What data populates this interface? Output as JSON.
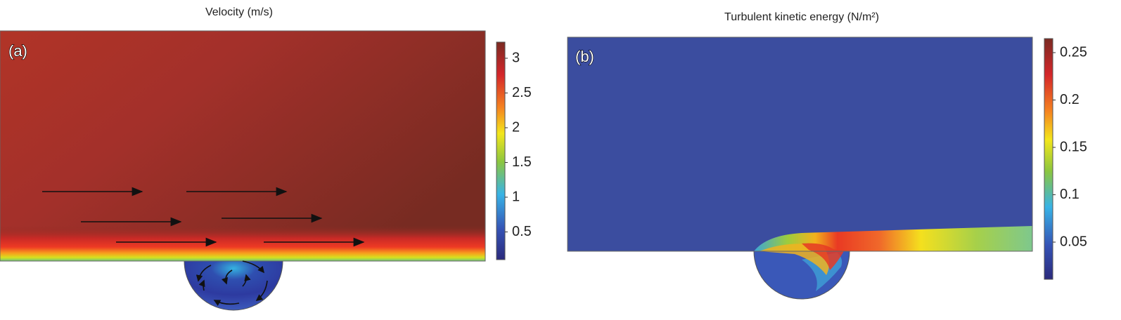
{
  "panels": [
    {
      "title": "Velocity (m/s)",
      "label": "(a)",
      "colorbar_ticks": [
        "3",
        "2.5",
        "2",
        "1.5",
        "1",
        "0.5"
      ]
    },
    {
      "title": "Turbulent kinetic energy (N/m²)",
      "label": "(b)",
      "colorbar_ticks": [
        "0.25",
        "0.2",
        "0.15",
        "0.1",
        "0.05"
      ]
    }
  ]
}
